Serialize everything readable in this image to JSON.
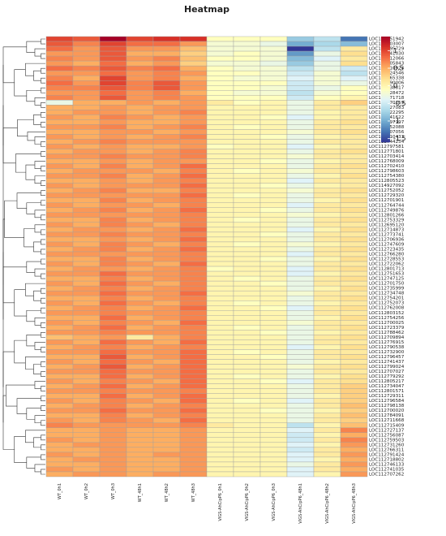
{
  "chart_data": {
    "type": "heatmap",
    "title": "Heatmap",
    "columns": [
      "WT_0h1",
      "WT_0h2",
      "WT_0h3",
      "WT_48h1",
      "WT_48h2",
      "WT_48h3",
      "VIGS-AhCipP6_0h1",
      "VIGS-AhCipP6_0h2",
      "VIGS-AhCipP6_0h3",
      "VIGS-AhCipP6_48h1",
      "VIGS-AhCipP6_48h2",
      "VIGS-AhCipP6_48h3"
    ],
    "rows": [
      "LOC112751942",
      "LOC112803007",
      "LOC112795729",
      "LOC112741030",
      "LOC112712066",
      "LOC112705843",
      "LOC112710924",
      "LOC112724546",
      "LOC112765338",
      "LOC112790006",
      "LOC112738817",
      "LOC112728472",
      "LOC112771718",
      "LOC112770159",
      "LOC114927083",
      "LOC112722295",
      "LOC112741622",
      "LOC112797197",
      "LOC112752088",
      "LOC112707056",
      "LOC112710433",
      "LOC112744254",
      "LOC112797581",
      "LOC112771801",
      "LOC112703414",
      "LOC112768009",
      "LOC112702410",
      "LOC112798603",
      "LOC112754380",
      "LOC112805523",
      "LOC114927092",
      "LOC112752052",
      "LOC112729320",
      "LOC112701901",
      "LOC112764744",
      "LOC112749876",
      "LOC112801266",
      "LOC112753329",
      "LOC112695120",
      "LOC112714873",
      "LOC112773741",
      "LOC112706936",
      "LOC112747609",
      "LOC112723435",
      "LOC112766280",
      "LOC112728553",
      "LOC112722062",
      "LOC112801713",
      "LOC112751653",
      "LOC112747125",
      "LOC112701750",
      "LOC112735999",
      "LOC112734748",
      "LOC112754201",
      "LOC112752073",
      "LOC112762008",
      "LOC112803152",
      "LOC112754256",
      "LOC112700025",
      "LOC112723379",
      "LOC112788462",
      "LOC112709894",
      "LOC112776915",
      "LOC112790538",
      "LOC112732900",
      "LOC112796457",
      "LOC112741437",
      "LOC112799024",
      "LOC112707027",
      "LOC112779292",
      "LOC112805217",
      "LOC112734047",
      "LOC112801571",
      "LOC112729311",
      "LOC112796584",
      "LOC112798138",
      "LOC112700020",
      "LOC112784091",
      "LOC112711668",
      "LOC112715409",
      "LOC112727137",
      "LOC112756087",
      "LOC112759503",
      "LOC112731260",
      "LOC112766311",
      "LOC112791424",
      "LOC112718802",
      "LOC112746133",
      "LOC112741035",
      "LOC112707262"
    ],
    "values": [
      [
        1.0,
        0.9,
        1.4,
        1.0,
        1.1,
        1.1,
        -0.1,
        -0.1,
        -0.1,
        -0.8,
        -0.6,
        -1.3
      ],
      [
        0.9,
        0.7,
        1.0,
        0.8,
        0.8,
        0.6,
        -0.2,
        -0.2,
        -0.3,
        -1.0,
        -0.7,
        -0.9
      ],
      [
        0.8,
        0.6,
        0.9,
        0.6,
        0.6,
        0.4,
        -0.2,
        -0.2,
        -0.2,
        -1.6,
        -0.6,
        0.1
      ],
      [
        0.6,
        0.6,
        0.9,
        0.5,
        0.5,
        0.3,
        -0.2,
        -0.1,
        -0.2,
        -1.1,
        -0.3,
        0.2
      ],
      [
        0.7,
        0.6,
        0.9,
        0.6,
        0.7,
        0.4,
        -0.1,
        -0.1,
        -0.2,
        -0.9,
        -0.4,
        0.1
      ],
      [
        0.6,
        0.5,
        0.8,
        0.5,
        0.6,
        0.3,
        -0.2,
        -0.2,
        -0.3,
        -0.8,
        -0.3,
        0.2
      ],
      [
        0.8,
        0.7,
        0.9,
        0.7,
        0.8,
        0.5,
        -0.1,
        -0.2,
        -0.2,
        -0.6,
        -0.3,
        -0.5
      ],
      [
        0.6,
        0.6,
        0.8,
        0.6,
        0.7,
        0.6,
        -0.1,
        -0.1,
        -0.2,
        -0.5,
        -0.2,
        -0.6
      ],
      [
        0.7,
        0.5,
        1.0,
        0.6,
        0.7,
        0.5,
        -0.1,
        -0.2,
        -0.2,
        -0.4,
        -0.2,
        -0.4
      ],
      [
        0.8,
        0.6,
        1.0,
        0.7,
        0.9,
        0.6,
        -0.1,
        -0.1,
        -0.1,
        -0.5,
        -0.2,
        -0.3
      ],
      [
        0.7,
        0.7,
        0.9,
        0.7,
        0.9,
        0.6,
        -0.1,
        -0.1,
        -0.2,
        -0.5,
        -0.3,
        -0.1
      ],
      [
        0.6,
        0.6,
        0.8,
        0.6,
        0.7,
        0.5,
        -0.1,
        -0.2,
        -0.2,
        -0.6,
        -0.2,
        -0.1
      ],
      [
        0.7,
        0.6,
        0.9,
        0.6,
        0.7,
        0.6,
        -0.1,
        -0.1,
        -0.1,
        -0.5,
        -0.1,
        0.0
      ],
      [
        -0.3,
        0.5,
        0.5,
        0.6,
        0.5,
        0.6,
        0.1,
        -0.1,
        0.0,
        -0.3,
        0.1,
        0.3
      ],
      [
        0.5,
        0.5,
        0.6,
        0.5,
        0.6,
        0.6,
        0.0,
        0.0,
        0.0,
        -0.3,
        0.1,
        0.1
      ],
      [
        0.5,
        0.6,
        0.6,
        0.5,
        0.6,
        0.7,
        0.0,
        0.0,
        0.0,
        -0.3,
        0.0,
        0.1
      ],
      [
        0.6,
        0.5,
        0.7,
        0.6,
        0.5,
        0.6,
        0.0,
        0.0,
        -0.1,
        -0.4,
        0.0,
        0.1
      ],
      [
        0.5,
        0.5,
        0.6,
        0.5,
        0.5,
        0.6,
        0.0,
        0.0,
        0.0,
        -0.3,
        0.1,
        0.2
      ],
      [
        0.6,
        0.6,
        0.7,
        0.5,
        0.6,
        0.7,
        0.0,
        -0.1,
        0.0,
        -0.3,
        0.1,
        0.1
      ],
      [
        0.5,
        0.5,
        0.6,
        0.6,
        0.5,
        0.6,
        0.0,
        0.0,
        0.0,
        -0.2,
        0.1,
        0.2
      ],
      [
        0.6,
        0.5,
        0.6,
        0.5,
        0.6,
        0.7,
        0.0,
        0.0,
        -0.1,
        -0.3,
        0.0,
        0.1
      ],
      [
        0.5,
        0.6,
        0.7,
        0.6,
        0.6,
        0.6,
        0.0,
        0.0,
        0.0,
        -0.3,
        0.1,
        0.1
      ],
      [
        0.6,
        0.5,
        0.6,
        0.5,
        0.5,
        0.6,
        -0.1,
        0.0,
        0.0,
        -0.4,
        0.0,
        0.1
      ],
      [
        0.5,
        0.6,
        0.6,
        0.5,
        0.6,
        0.7,
        0.0,
        0.0,
        0.0,
        -0.3,
        0.1,
        0.2
      ],
      [
        0.6,
        0.6,
        0.7,
        0.6,
        0.6,
        0.7,
        0.0,
        0.0,
        0.0,
        -0.2,
        0.1,
        0.1
      ],
      [
        0.5,
        0.5,
        0.6,
        0.5,
        0.6,
        0.6,
        0.0,
        0.0,
        -0.1,
        -0.3,
        0.0,
        0.1
      ],
      [
        0.6,
        0.5,
        0.7,
        0.5,
        0.6,
        0.8,
        0.0,
        0.0,
        0.0,
        -0.3,
        0.1,
        0.2
      ],
      [
        0.5,
        0.6,
        0.6,
        0.6,
        0.5,
        0.7,
        0.0,
        -0.1,
        0.0,
        -0.2,
        0.1,
        0.1
      ],
      [
        0.6,
        0.6,
        0.7,
        0.5,
        0.6,
        0.8,
        0.0,
        0.0,
        0.0,
        -0.3,
        0.0,
        0.2
      ],
      [
        0.5,
        0.5,
        0.6,
        0.5,
        0.6,
        0.7,
        0.0,
        0.0,
        0.0,
        -0.4,
        0.1,
        0.1
      ],
      [
        0.6,
        0.5,
        0.6,
        0.6,
        0.6,
        0.8,
        0.0,
        0.0,
        -0.1,
        -0.3,
        0.0,
        0.1
      ],
      [
        0.5,
        0.6,
        0.7,
        0.5,
        0.5,
        0.7,
        0.0,
        0.0,
        0.0,
        -0.2,
        0.1,
        0.2
      ],
      [
        0.6,
        0.6,
        0.6,
        0.6,
        0.6,
        0.8,
        0.0,
        -0.1,
        0.0,
        -0.3,
        0.1,
        0.1
      ],
      [
        0.5,
        0.5,
        0.7,
        0.5,
        0.6,
        0.7,
        0.0,
        0.0,
        0.0,
        -0.3,
        0.0,
        0.2
      ],
      [
        0.6,
        0.5,
        0.6,
        0.6,
        0.5,
        0.7,
        0.0,
        0.0,
        0.0,
        -0.4,
        0.1,
        0.1
      ],
      [
        0.5,
        0.6,
        0.7,
        0.5,
        0.6,
        0.8,
        0.0,
        0.0,
        -0.1,
        -0.3,
        0.1,
        0.2
      ],
      [
        0.6,
        0.6,
        0.6,
        0.6,
        0.6,
        0.7,
        0.0,
        0.0,
        0.0,
        -0.2,
        0.0,
        0.1
      ],
      [
        0.5,
        0.5,
        0.7,
        0.5,
        0.6,
        0.7,
        0.0,
        -0.1,
        0.0,
        -0.3,
        0.1,
        0.2
      ],
      [
        0.6,
        0.5,
        0.7,
        0.6,
        0.5,
        0.7,
        0.0,
        0.0,
        0.0,
        -0.3,
        0.1,
        0.1
      ],
      [
        0.5,
        0.6,
        0.6,
        0.5,
        0.6,
        0.8,
        0.0,
        0.0,
        0.0,
        -0.4,
        0.0,
        0.2
      ],
      [
        0.6,
        0.6,
        0.7,
        0.6,
        0.6,
        0.7,
        0.0,
        0.0,
        -0.1,
        -0.3,
        0.1,
        0.1
      ],
      [
        0.5,
        0.5,
        0.6,
        0.5,
        0.6,
        0.8,
        0.0,
        0.0,
        0.0,
        -0.3,
        0.1,
        0.2
      ],
      [
        0.6,
        0.5,
        0.7,
        0.6,
        0.5,
        0.7,
        0.0,
        -0.1,
        0.0,
        -0.2,
        0.0,
        0.1
      ],
      [
        0.5,
        0.6,
        0.7,
        0.5,
        0.6,
        0.8,
        0.0,
        0.0,
        0.0,
        -0.3,
        0.1,
        0.2
      ],
      [
        0.6,
        0.6,
        0.6,
        0.6,
        0.6,
        0.7,
        0.0,
        0.0,
        0.0,
        -0.4,
        0.1,
        0.1
      ],
      [
        0.5,
        0.5,
        0.7,
        0.5,
        0.6,
        0.7,
        0.0,
        0.0,
        -0.1,
        -0.3,
        0.0,
        0.2
      ],
      [
        0.6,
        0.5,
        0.7,
        0.6,
        0.5,
        0.8,
        0.0,
        0.0,
        0.0,
        -0.3,
        0.1,
        0.1
      ],
      [
        0.5,
        0.6,
        0.6,
        0.5,
        0.6,
        0.7,
        -0.1,
        0.0,
        0.0,
        -0.4,
        0.1,
        0.2
      ],
      [
        0.6,
        0.6,
        0.8,
        0.6,
        0.6,
        0.7,
        0.0,
        0.0,
        0.0,
        -0.4,
        0.0,
        0.1
      ],
      [
        0.5,
        0.5,
        0.7,
        0.5,
        0.6,
        0.7,
        0.0,
        -0.1,
        0.0,
        -0.3,
        0.1,
        0.2
      ],
      [
        0.6,
        0.5,
        0.8,
        0.6,
        0.5,
        0.7,
        0.0,
        0.0,
        -0.1,
        -0.3,
        0.1,
        0.1
      ],
      [
        0.5,
        0.6,
        0.7,
        0.5,
        0.6,
        0.7,
        0.0,
        0.0,
        0.0,
        -0.3,
        0.0,
        0.2
      ],
      [
        0.6,
        0.6,
        0.8,
        0.6,
        0.6,
        0.8,
        0.0,
        0.0,
        0.0,
        -0.2,
        0.1,
        0.1
      ],
      [
        0.5,
        0.5,
        0.7,
        0.5,
        0.6,
        0.7,
        0.0,
        0.0,
        0.0,
        -0.3,
        0.1,
        0.2
      ],
      [
        0.6,
        0.5,
        0.8,
        0.6,
        0.5,
        0.7,
        0.0,
        -0.1,
        0.0,
        -0.3,
        0.0,
        0.1
      ],
      [
        0.5,
        0.6,
        0.7,
        0.5,
        0.6,
        0.8,
        0.0,
        0.0,
        -0.1,
        -0.4,
        0.1,
        0.2
      ],
      [
        0.6,
        0.6,
        0.7,
        0.6,
        0.6,
        0.7,
        0.0,
        0.0,
        0.0,
        -0.3,
        0.1,
        0.1
      ],
      [
        0.5,
        0.5,
        0.8,
        0.5,
        0.6,
        0.7,
        0.0,
        0.0,
        0.0,
        -0.3,
        0.0,
        0.2
      ],
      [
        0.6,
        0.5,
        0.7,
        0.6,
        0.5,
        0.8,
        0.0,
        0.0,
        0.0,
        -0.2,
        0.1,
        0.1
      ],
      [
        0.5,
        0.6,
        0.8,
        0.5,
        0.6,
        0.7,
        0.0,
        -0.1,
        0.0,
        -0.3,
        0.1,
        0.2
      ],
      [
        0.6,
        0.6,
        0.7,
        0.6,
        0.6,
        0.7,
        0.0,
        0.0,
        -0.1,
        -0.3,
        0.0,
        0.1
      ],
      [
        0.4,
        0.5,
        0.6,
        0.1,
        0.5,
        0.7,
        0.0,
        0.0,
        0.0,
        -0.3,
        0.1,
        0.2
      ],
      [
        0.6,
        0.5,
        0.8,
        0.6,
        0.5,
        0.8,
        0.0,
        0.0,
        0.0,
        -0.3,
        0.1,
        0.1
      ],
      [
        0.5,
        0.6,
        0.7,
        0.5,
        0.6,
        0.7,
        0.0,
        0.0,
        0.0,
        -0.4,
        0.0,
        0.2
      ],
      [
        0.6,
        0.6,
        0.8,
        0.6,
        0.6,
        0.8,
        0.0,
        -0.1,
        0.0,
        -0.3,
        0.1,
        0.1
      ],
      [
        0.5,
        0.5,
        0.9,
        0.5,
        0.6,
        0.8,
        0.0,
        0.0,
        -0.1,
        -0.3,
        0.1,
        0.2
      ],
      [
        0.6,
        0.5,
        0.8,
        0.6,
        0.5,
        0.8,
        0.0,
        0.0,
        0.0,
        -0.3,
        0.0,
        0.1
      ],
      [
        0.5,
        0.6,
        0.9,
        0.5,
        0.6,
        0.8,
        0.0,
        0.0,
        0.0,
        -0.2,
        0.1,
        0.2
      ],
      [
        0.6,
        0.6,
        0.8,
        0.6,
        0.6,
        0.8,
        0.0,
        0.0,
        0.0,
        -0.3,
        0.1,
        0.1
      ],
      [
        0.5,
        0.5,
        0.8,
        0.5,
        0.6,
        0.8,
        0.0,
        -0.1,
        0.0,
        -0.3,
        0.0,
        0.2
      ],
      [
        0.6,
        0.5,
        0.7,
        0.6,
        0.5,
        0.8,
        0.0,
        0.0,
        -0.1,
        -0.4,
        0.1,
        0.2
      ],
      [
        0.5,
        0.6,
        0.8,
        0.5,
        0.6,
        0.8,
        0.0,
        0.0,
        0.0,
        -0.3,
        0.1,
        0.3
      ],
      [
        0.6,
        0.6,
        0.7,
        0.6,
        0.6,
        0.7,
        0.0,
        0.0,
        0.0,
        -0.3,
        0.1,
        0.3
      ],
      [
        0.5,
        0.5,
        0.8,
        0.5,
        0.6,
        0.8,
        0.0,
        0.0,
        0.0,
        -0.3,
        0.0,
        0.3
      ],
      [
        0.6,
        0.5,
        0.7,
        0.6,
        0.5,
        0.8,
        0.0,
        -0.1,
        0.0,
        -0.4,
        0.1,
        0.3
      ],
      [
        0.5,
        0.6,
        0.7,
        0.5,
        0.6,
        0.7,
        0.0,
        0.0,
        0.0,
        -0.3,
        0.1,
        0.4
      ],
      [
        0.6,
        0.6,
        0.8,
        0.6,
        0.6,
        0.8,
        0.0,
        0.0,
        -0.1,
        -0.3,
        0.0,
        0.3
      ],
      [
        0.5,
        0.5,
        0.7,
        0.5,
        0.6,
        0.7,
        0.0,
        0.0,
        0.0,
        -0.3,
        0.1,
        0.4
      ],
      [
        0.6,
        0.5,
        0.7,
        0.6,
        0.5,
        0.8,
        0.0,
        0.0,
        0.0,
        -0.3,
        0.1,
        0.3
      ],
      [
        0.7,
        0.6,
        0.6,
        0.6,
        0.6,
        0.7,
        0.1,
        0.0,
        0.0,
        -0.6,
        0.0,
        0.4
      ],
      [
        0.5,
        0.5,
        0.6,
        0.5,
        0.5,
        0.6,
        0.0,
        0.0,
        0.0,
        -0.4,
        0.1,
        0.7
      ],
      [
        0.5,
        0.5,
        0.6,
        0.5,
        0.5,
        0.6,
        0.0,
        0.0,
        0.0,
        -0.5,
        0.0,
        0.5
      ],
      [
        0.6,
        0.5,
        0.6,
        0.5,
        0.5,
        0.6,
        0.0,
        0.0,
        0.0,
        -0.5,
        0.1,
        0.7
      ],
      [
        0.5,
        0.6,
        0.6,
        0.5,
        0.5,
        0.6,
        0.0,
        0.0,
        0.0,
        -0.4,
        0.0,
        0.6
      ],
      [
        0.5,
        0.5,
        0.6,
        0.5,
        0.5,
        0.6,
        0.0,
        0.0,
        0.0,
        -0.5,
        0.1,
        0.5
      ],
      [
        0.6,
        0.5,
        0.6,
        0.5,
        0.6,
        0.6,
        0.0,
        0.0,
        0.0,
        -0.4,
        0.1,
        0.6
      ],
      [
        0.5,
        0.6,
        0.6,
        0.5,
        0.5,
        0.6,
        0.0,
        0.0,
        0.0,
        -0.4,
        0.0,
        0.5
      ],
      [
        0.5,
        0.5,
        0.6,
        0.5,
        0.5,
        0.6,
        0.0,
        0.0,
        0.0,
        -0.3,
        0.1,
        0.6
      ],
      [
        0.6,
        0.5,
        0.6,
        0.5,
        0.5,
        0.6,
        0.0,
        0.0,
        0.0,
        -0.4,
        0.1,
        0.5
      ],
      [
        0.5,
        0.6,
        0.6,
        0.5,
        0.6,
        0.6,
        0.0,
        0.0,
        0.0,
        -0.4,
        0.0,
        0.6
      ]
    ],
    "colormap": [
      "#313695",
      "#4575B4",
      "#74ADD1",
      "#ABD9E9",
      "#E0F3F8",
      "#FFFFBF",
      "#FEE090",
      "#FDAE61",
      "#F46D43",
      "#D73027",
      "#A50026"
    ],
    "colorbar_lim": [
      -1.6,
      1.4
    ],
    "colorbar_ticks": [
      1,
      0.5,
      0,
      -0.5,
      -1,
      -1.5
    ]
  }
}
